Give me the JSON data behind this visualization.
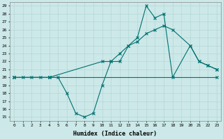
{
  "xlabel": "Humidex (Indice chaleur)",
  "xlim": [
    -0.5,
    23.5
  ],
  "ylim": [
    14.5,
    29.5
  ],
  "yticks": [
    15,
    16,
    17,
    18,
    19,
    20,
    21,
    22,
    23,
    24,
    25,
    26,
    27,
    28,
    29
  ],
  "xticks": [
    0,
    1,
    2,
    3,
    4,
    5,
    6,
    7,
    8,
    9,
    10,
    11,
    12,
    13,
    14,
    15,
    16,
    17,
    18,
    19,
    20,
    21,
    22,
    23
  ],
  "background_color": "#cce8e8",
  "line_color": "#007070",
  "line1_x": [
    0,
    4,
    23
  ],
  "line1_y": [
    20,
    20,
    20
  ],
  "line2_x": [
    0,
    4,
    10,
    11,
    12,
    13,
    14,
    15,
    16,
    17,
    18,
    20,
    21,
    22,
    23
  ],
  "line2_y": [
    20,
    20,
    22,
    22,
    23,
    24,
    24.5,
    25.5,
    26,
    26.5,
    26,
    24,
    22,
    21.5,
    21
  ],
  "line3_x": [
    0,
    1,
    2,
    3,
    4,
    5,
    6,
    7,
    8,
    9,
    10,
    11,
    12,
    13,
    14,
    15,
    16,
    17,
    18,
    20,
    21,
    22,
    23
  ],
  "line3_y": [
    20,
    20,
    20,
    20,
    20,
    20,
    18,
    15.5,
    15,
    15.5,
    19,
    22,
    22,
    24,
    25,
    29,
    27.5,
    28,
    20,
    24,
    22,
    21.5,
    21
  ]
}
